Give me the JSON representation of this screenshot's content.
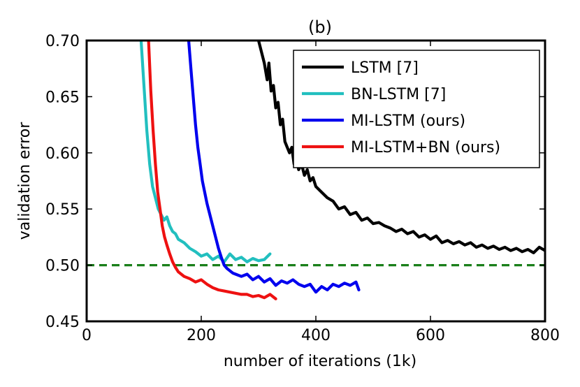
{
  "chart_data": {
    "type": "line",
    "title": "(b)",
    "xlabel": "number of iterations (1k)",
    "ylabel": "validation error",
    "xlim": [
      0,
      800
    ],
    "ylim": [
      0.45,
      0.7
    ],
    "xticks": [
      0,
      200,
      400,
      600,
      800
    ],
    "xtick_labels": [
      "0",
      "200",
      "400",
      "600",
      "800"
    ],
    "yticks": [
      0.45,
      0.5,
      0.55,
      0.6,
      0.65,
      0.7
    ],
    "ytick_labels": [
      "0.45",
      "0.50",
      "0.55",
      "0.60",
      "0.65",
      "0.70"
    ],
    "legend_position": "top-right",
    "reference_line": {
      "y": 0.5,
      "style": "dashed",
      "color": "#1a7f1a"
    },
    "series": [
      {
        "name": "LSTM [7]",
        "color": "#000000",
        "x": [
          300,
          305,
          310,
          315,
          318,
          322,
          326,
          330,
          334,
          338,
          342,
          346,
          350,
          354,
          358,
          362,
          366,
          370,
          375,
          380,
          385,
          390,
          395,
          400,
          410,
          420,
          430,
          440,
          450,
          460,
          470,
          480,
          490,
          500,
          510,
          520,
          530,
          540,
          550,
          560,
          570,
          580,
          590,
          600,
          610,
          620,
          630,
          640,
          650,
          660,
          670,
          680,
          690,
          700,
          710,
          720,
          730,
          740,
          750,
          760,
          770,
          780,
          790,
          800
        ],
        "values": [
          0.7,
          0.69,
          0.68,
          0.665,
          0.68,
          0.655,
          0.66,
          0.64,
          0.645,
          0.625,
          0.63,
          0.61,
          0.605,
          0.6,
          0.605,
          0.59,
          0.595,
          0.585,
          0.59,
          0.58,
          0.585,
          0.575,
          0.578,
          0.57,
          0.565,
          0.56,
          0.557,
          0.55,
          0.552,
          0.545,
          0.547,
          0.54,
          0.542,
          0.537,
          0.538,
          0.535,
          0.533,
          0.53,
          0.532,
          0.528,
          0.53,
          0.525,
          0.527,
          0.523,
          0.526,
          0.52,
          0.522,
          0.519,
          0.521,
          0.518,
          0.52,
          0.516,
          0.518,
          0.515,
          0.517,
          0.514,
          0.516,
          0.513,
          0.515,
          0.512,
          0.514,
          0.511,
          0.516,
          0.513
        ]
      },
      {
        "name": "BN-LSTM [7]",
        "color": "#22bfbf",
        "x": [
          95,
          100,
          105,
          110,
          115,
          120,
          125,
          130,
          135,
          140,
          145,
          150,
          155,
          160,
          170,
          180,
          190,
          200,
          210,
          220,
          230,
          240,
          250,
          260,
          270,
          280,
          290,
          300,
          310,
          320
        ],
        "values": [
          0.7,
          0.66,
          0.62,
          0.59,
          0.57,
          0.56,
          0.55,
          0.545,
          0.54,
          0.543,
          0.535,
          0.53,
          0.528,
          0.523,
          0.52,
          0.515,
          0.512,
          0.508,
          0.51,
          0.505,
          0.508,
          0.503,
          0.51,
          0.505,
          0.507,
          0.503,
          0.506,
          0.504,
          0.505,
          0.51
        ]
      },
      {
        "name": "MI-LSTM (ours)",
        "color": "#0000ee",
        "x": [
          178,
          182,
          186,
          190,
          194,
          198,
          202,
          206,
          210,
          215,
          220,
          225,
          230,
          235,
          240,
          245,
          250,
          255,
          260,
          270,
          280,
          290,
          300,
          310,
          320,
          330,
          340,
          350,
          360,
          370,
          380,
          390,
          400,
          410,
          420,
          430,
          440,
          450,
          460,
          470,
          475
        ],
        "values": [
          0.7,
          0.675,
          0.65,
          0.625,
          0.605,
          0.59,
          0.575,
          0.565,
          0.555,
          0.545,
          0.535,
          0.525,
          0.515,
          0.507,
          0.5,
          0.497,
          0.495,
          0.493,
          0.492,
          0.49,
          0.492,
          0.487,
          0.49,
          0.485,
          0.488,
          0.482,
          0.486,
          0.484,
          0.487,
          0.483,
          0.481,
          0.483,
          0.476,
          0.481,
          0.478,
          0.483,
          0.481,
          0.484,
          0.482,
          0.485,
          0.478
        ]
      },
      {
        "name": "MI-LSTM+BN (ours)",
        "color": "#ee1111",
        "x": [
          108,
          112,
          116,
          120,
          124,
          128,
          132,
          136,
          140,
          145,
          150,
          155,
          160,
          170,
          180,
          190,
          200,
          210,
          220,
          230,
          240,
          250,
          260,
          270,
          280,
          290,
          300,
          310,
          320,
          330
        ],
        "values": [
          0.7,
          0.655,
          0.62,
          0.59,
          0.565,
          0.55,
          0.535,
          0.525,
          0.518,
          0.51,
          0.503,
          0.498,
          0.494,
          0.49,
          0.488,
          0.485,
          0.487,
          0.483,
          0.48,
          0.478,
          0.477,
          0.476,
          0.475,
          0.474,
          0.474,
          0.472,
          0.473,
          0.471,
          0.474,
          0.47
        ]
      }
    ]
  }
}
